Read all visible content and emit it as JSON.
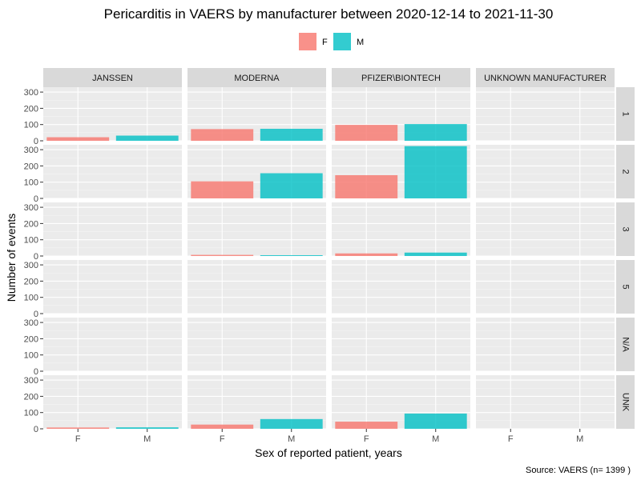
{
  "chart_data": {
    "type": "bar",
    "title": "Pericarditis in VAERS by manufacturer between 2020-12-14 to 2021-11-30",
    "xlabel": "Sex of reported patient, years",
    "ylabel": "Number of events",
    "caption": "Source: VAERS (n= 1399 )",
    "ylim": [
      0,
      330
    ],
    "yticks": [
      0,
      100,
      200,
      300
    ],
    "grid": true,
    "legend_position": "top",
    "categories": [
      "F",
      "M"
    ],
    "series": [
      {
        "name": "F",
        "color": "#F8766D"
      },
      {
        "name": "M",
        "color": "#00BFC4"
      }
    ],
    "columns": [
      "JANSSEN",
      "MODERNA",
      "PFIZER\\BIONTECH",
      "UNKNOWN MANUFACTURER"
    ],
    "rows": [
      "1",
      "2",
      "3",
      "5",
      "N/A",
      "UNK"
    ],
    "values": {
      "JANSSEN": {
        "1": [
          22,
          32
        ],
        "2": [
          0,
          0
        ],
        "3": [
          0,
          0
        ],
        "5": [
          0,
          0
        ],
        "N/A": [
          0,
          0
        ],
        "UNK": [
          8,
          9
        ]
      },
      "MODERNA": {
        "1": [
          72,
          74
        ],
        "2": [
          105,
          155
        ],
        "3": [
          7,
          5
        ],
        "5": [
          0,
          0
        ],
        "N/A": [
          0,
          0
        ],
        "UNK": [
          26,
          60
        ]
      },
      "PFIZER\\BIONTECH": {
        "1": [
          98,
          103
        ],
        "2": [
          143,
          322
        ],
        "3": [
          16,
          21
        ],
        "5": [
          0,
          0
        ],
        "N/A": [
          0,
          0
        ],
        "UNK": [
          44,
          94
        ]
      },
      "UNKNOWN MANUFACTURER": {
        "1": [
          0,
          0
        ],
        "2": [
          0,
          0
        ],
        "3": [
          0,
          0
        ],
        "5": [
          0,
          0
        ],
        "N/A": [
          0,
          0
        ],
        "UNK": [
          0,
          0
        ]
      }
    }
  }
}
